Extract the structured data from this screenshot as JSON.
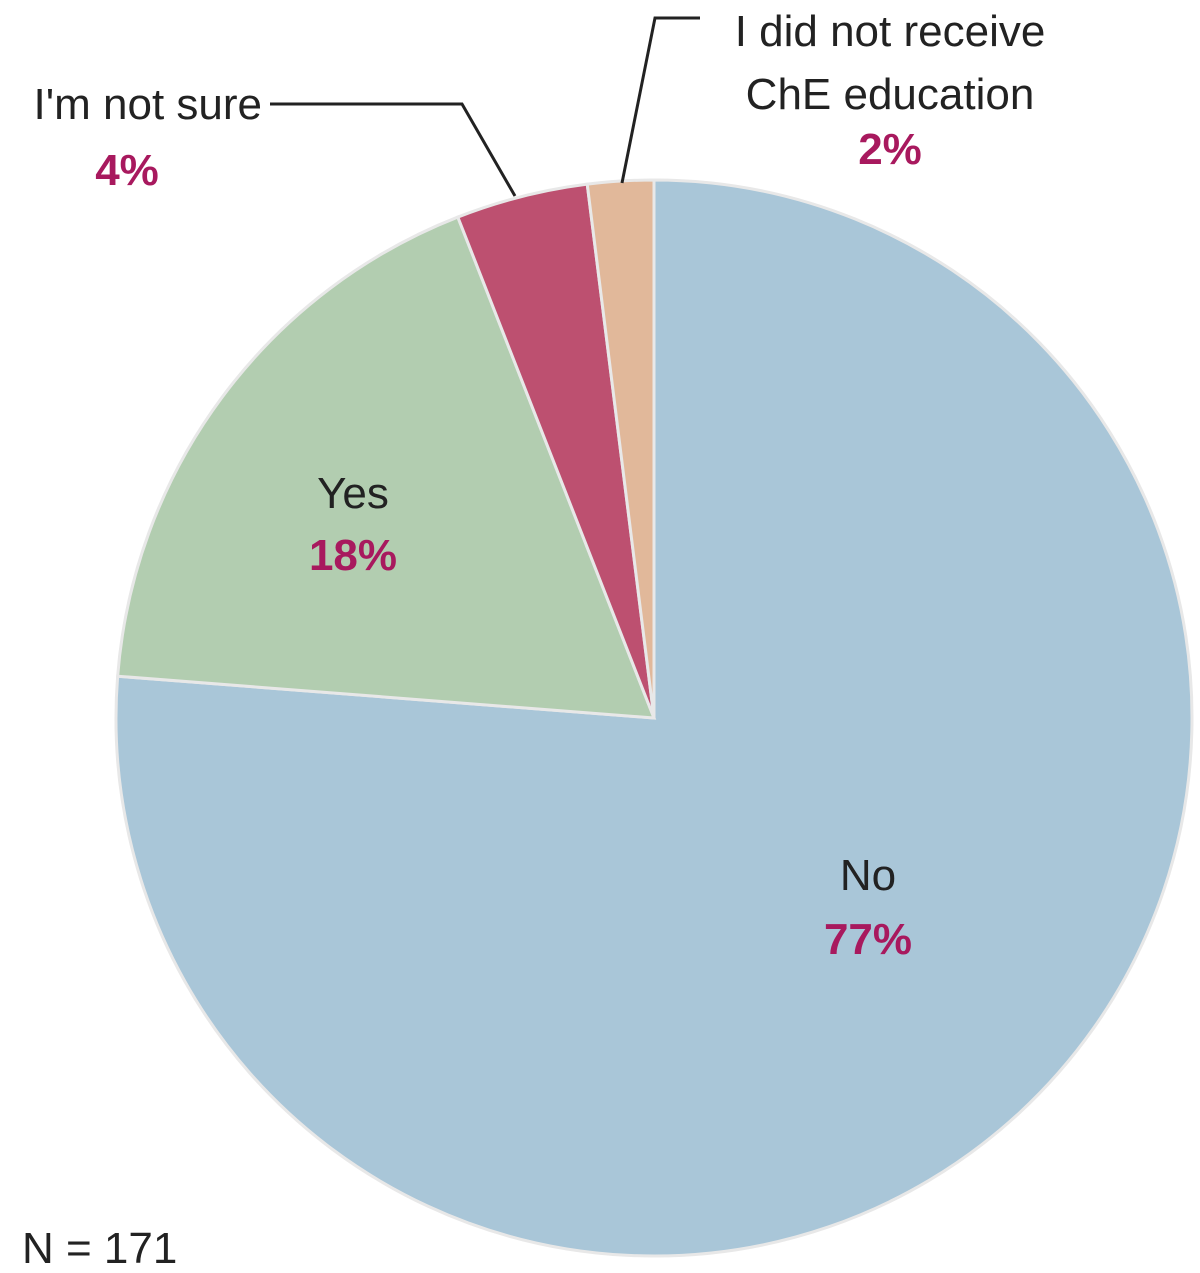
{
  "chart_data": {
    "type": "pie",
    "categories": [
      "No",
      "Yes",
      "I'm not sure",
      "I did not receive ChE education"
    ],
    "values": [
      77,
      18,
      4,
      2
    ],
    "value_labels": [
      "77%",
      "18%",
      "4%",
      "2%"
    ],
    "colors": [
      "#a9c6d8",
      "#b2cdb0",
      "#bd5070",
      "#e1b89a"
    ],
    "note": "N = 171"
  }
}
